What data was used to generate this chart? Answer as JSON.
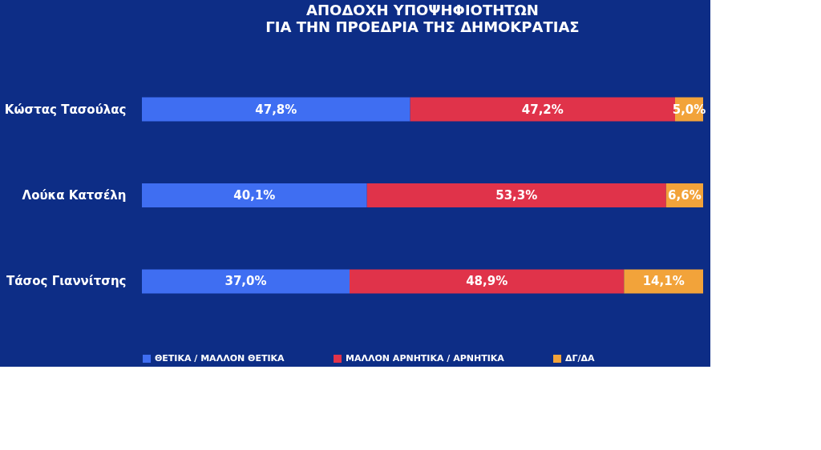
{
  "chart_data": {
    "type": "bar",
    "orientation": "horizontal",
    "stacked": true,
    "title": "ΑΠΟΔΟΧΗ ΥΠΟΨΗΦΙΟΤΗΤΩΝ",
    "subtitle": "ΓΙΑ ΤΗΝ ΠΡΟΕΔΡΙΑ ΤΗΣ ΔΗΜΟΚΡΑΤΙΑΣ",
    "categories": [
      "Κώστας Τασούλας",
      "Λούκα Κατσέλη",
      "Τάσος Γιαννίτσης"
    ],
    "series": [
      {
        "name": "ΘΕΤΙΚΑ / ΜΑΛΛΟΝ ΘΕΤΙΚΑ",
        "color": "#3f6ef2",
        "values": [
          47.8,
          40.1,
          37.0
        ],
        "value_labels": [
          "47,8%",
          "40,1%",
          "37,0%"
        ]
      },
      {
        "name": "ΜΑΛΛΟΝ ΑΡΝΗΤΙΚΑ / ΑΡΝΗΤΙΚΑ",
        "color": "#e0334a",
        "values": [
          47.2,
          53.3,
          48.9
        ],
        "value_labels": [
          "47,2%",
          "53,3%",
          "48,9%"
        ]
      },
      {
        "name": "ΔΓ/ΔΑ",
        "color": "#f2a33a",
        "values": [
          5.0,
          6.6,
          14.1
        ],
        "value_labels": [
          "5,0%",
          "6,6%",
          "14,1%"
        ]
      }
    ],
    "legend": "bottom",
    "tick_labels": "y"
  }
}
